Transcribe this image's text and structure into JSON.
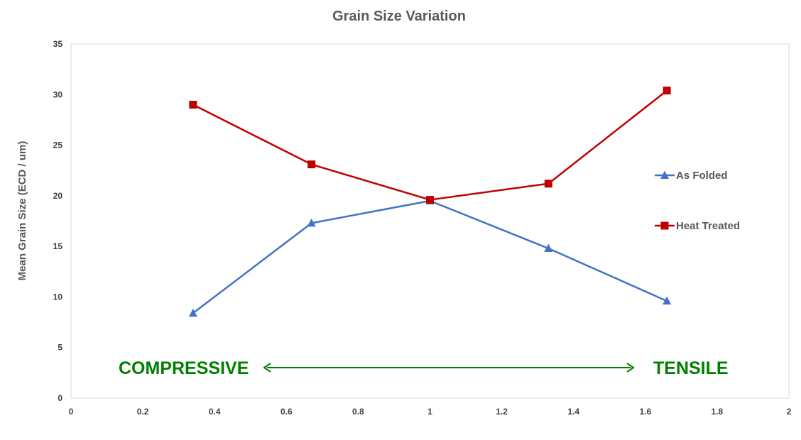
{
  "chart_data": {
    "type": "line",
    "title": "Grain Size Variation",
    "ylabel": "Mean Grain Size (ECD / um)",
    "xlabel": "",
    "xlim": [
      0,
      2
    ],
    "ylim": [
      0,
      35
    ],
    "x_ticks": [
      "0",
      "0.2",
      "0.4",
      "0.6",
      "0.8",
      "1",
      "1.2",
      "1.4",
      "1.6",
      "1.8",
      "2"
    ],
    "y_ticks": [
      "0",
      "5",
      "10",
      "15",
      "20",
      "25",
      "30",
      "35"
    ],
    "grid": false,
    "legend_position": "right",
    "series": [
      {
        "name": "As Folded",
        "color": "#4472C4",
        "marker": "triangle",
        "x": [
          0.34,
          0.67,
          1.0,
          1.33,
          1.66
        ],
        "y": [
          8.4,
          17.3,
          19.5,
          14.8,
          9.6
        ]
      },
      {
        "name": "Heat Treated",
        "color": "#C00000",
        "marker": "square",
        "x": [
          0.34,
          0.67,
          1.0,
          1.33,
          1.66
        ],
        "y": [
          29.0,
          23.1,
          19.6,
          21.2,
          30.4
        ]
      }
    ],
    "annotations": {
      "left_label": "COMPRESSIVE",
      "right_label": "TENSILE",
      "arrow_color": "#008000"
    }
  }
}
